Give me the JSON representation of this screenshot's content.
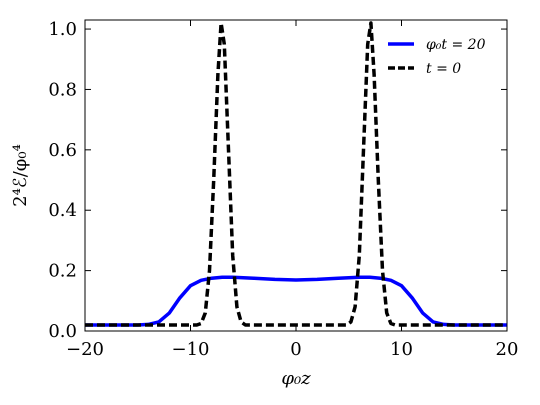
{
  "chart_data": {
    "type": "line",
    "title": "",
    "xlabel": "φ₀z",
    "ylabel": "2⁴ℰ/φ₀⁴",
    "xlim": [
      -20,
      20
    ],
    "ylim": [
      0.0,
      1.03
    ],
    "xticks": [
      -20,
      -10,
      0,
      10,
      20
    ],
    "yticks": [
      0.0,
      0.2,
      0.4,
      0.6,
      0.8,
      1.0
    ],
    "xtick_labels": [
      "−20",
      "−10",
      "0",
      "10",
      "20"
    ],
    "ytick_labels": [
      "0.0",
      "0.2",
      "0.4",
      "0.6",
      "0.8",
      "1.0"
    ],
    "grid": false,
    "legend_position": "top-right",
    "series": [
      {
        "name": "φ₀t = 20",
        "color": "#0000ff",
        "style": "solid",
        "x": [
          -20,
          -15,
          -14,
          -13,
          -12,
          -11,
          -10,
          -9,
          -8,
          -7,
          -6,
          -4,
          -2,
          0,
          2,
          4,
          6,
          7,
          8,
          9,
          10,
          11,
          12,
          13,
          14,
          15,
          20
        ],
        "y": [
          0.02,
          0.02,
          0.022,
          0.03,
          0.06,
          0.11,
          0.15,
          0.168,
          0.175,
          0.178,
          0.178,
          0.175,
          0.171,
          0.169,
          0.171,
          0.175,
          0.178,
          0.178,
          0.175,
          0.168,
          0.15,
          0.11,
          0.06,
          0.03,
          0.022,
          0.02,
          0.02
        ]
      },
      {
        "name": "t = 0",
        "color": "#000000",
        "style": "dashed",
        "x": [
          -20,
          -9.4,
          -9,
          -8.6,
          -8.2,
          -7.8,
          -7.4,
          -7.1,
          -6.8,
          -6.4,
          -6.0,
          -5.6,
          -5.2,
          -4.8,
          4.8,
          5.2,
          5.6,
          6.0,
          6.4,
          6.8,
          7.1,
          7.4,
          7.8,
          8.2,
          8.6,
          9,
          9.4,
          20
        ],
        "y": [
          0.02,
          0.02,
          0.025,
          0.06,
          0.2,
          0.5,
          0.85,
          1.02,
          0.95,
          0.6,
          0.25,
          0.08,
          0.03,
          0.02,
          0.02,
          0.03,
          0.08,
          0.25,
          0.6,
          0.95,
          1.02,
          0.85,
          0.5,
          0.2,
          0.06,
          0.025,
          0.02,
          0.02
        ]
      }
    ]
  }
}
